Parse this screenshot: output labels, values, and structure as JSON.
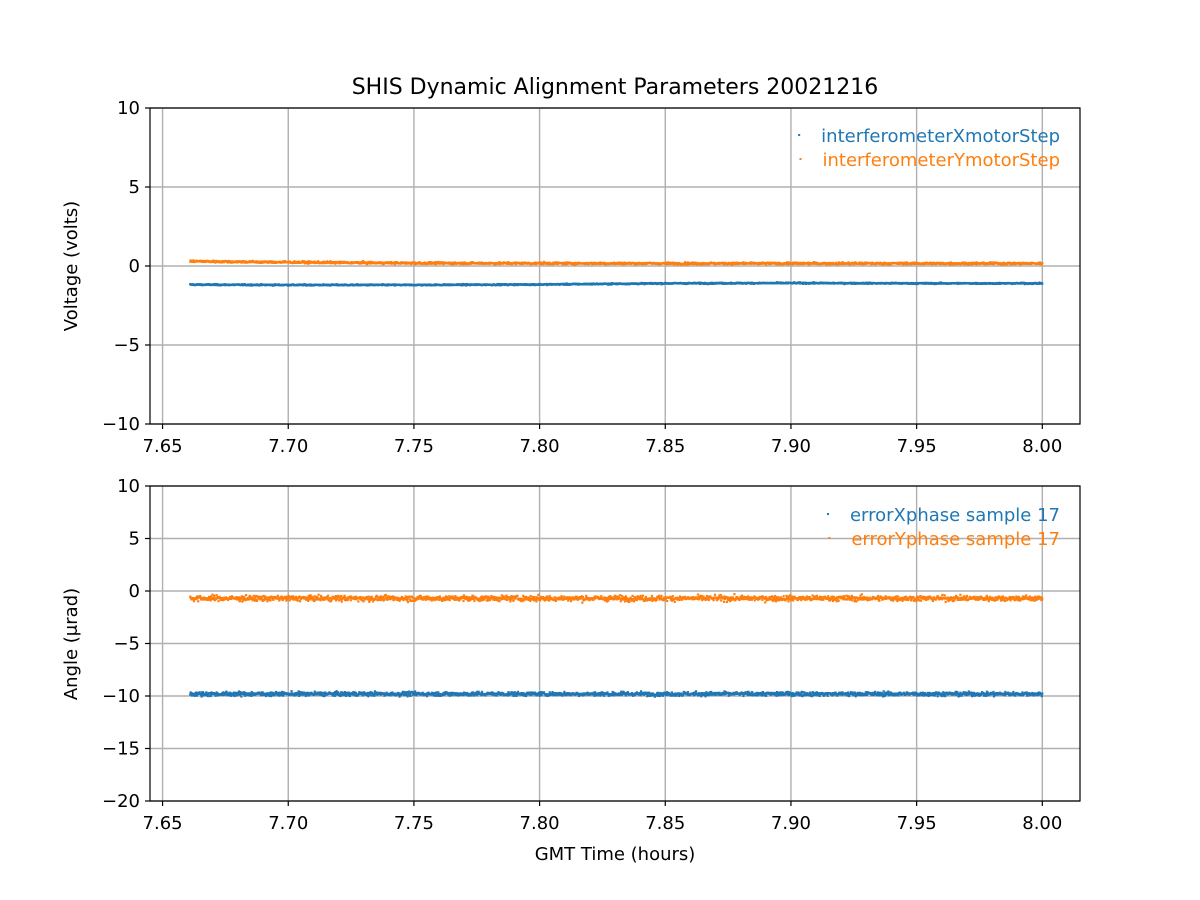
{
  "title": "SHIS Dynamic Alignment Parameters 20021216",
  "colors": {
    "blue": "#1f77b4",
    "orange": "#ff7f0e",
    "grid": "#b0b0b0"
  },
  "chart_data": [
    {
      "type": "scatter",
      "xlabel": "",
      "ylabel": "Voltage (volts)",
      "xlim": [
        7.645,
        8.015
      ],
      "ylim": [
        -10,
        10
      ],
      "xticks": [
        7.65,
        7.7,
        7.75,
        7.8,
        7.85,
        7.9,
        7.95,
        8.0
      ],
      "xtick_labels": [
        "7.65",
        "7.70",
        "7.75",
        "7.80",
        "7.85",
        "7.90",
        "7.95",
        "8.00"
      ],
      "yticks": [
        10,
        5,
        0,
        -5,
        -10
      ],
      "ytick_labels": [
        "10",
        "5",
        "0",
        "−5",
        "−10"
      ],
      "grid": true,
      "legend": "top-right",
      "series": [
        {
          "name": "interferometerXmotorStep",
          "color": "#1f77b4",
          "x": [
            7.661,
            7.7,
            7.75,
            7.8,
            7.85,
            7.9,
            7.95,
            8.0
          ],
          "y": [
            -1.18,
            -1.2,
            -1.2,
            -1.17,
            -1.1,
            -1.08,
            -1.1,
            -1.1
          ],
          "spread": 0.06
        },
        {
          "name": "interferometerYmotorStep",
          "color": "#ff7f0e",
          "x": [
            7.661,
            7.69,
            7.75,
            7.8,
            7.85,
            7.9,
            7.95,
            8.0
          ],
          "y": [
            0.3,
            0.25,
            0.18,
            0.17,
            0.16,
            0.16,
            0.16,
            0.16
          ],
          "spread": 0.1
        }
      ]
    },
    {
      "type": "scatter",
      "xlabel": "GMT Time (hours)",
      "ylabel": "Angle (μrad)",
      "xlim": [
        7.645,
        8.015
      ],
      "ylim": [
        -20,
        10
      ],
      "xticks": [
        7.65,
        7.7,
        7.75,
        7.8,
        7.85,
        7.9,
        7.95,
        8.0
      ],
      "xtick_labels": [
        "7.65",
        "7.70",
        "7.75",
        "7.80",
        "7.85",
        "7.90",
        "7.95",
        "8.00"
      ],
      "yticks": [
        10,
        5,
        0,
        -5,
        -10,
        -15,
        -20
      ],
      "ytick_labels": [
        "10",
        "5",
        "0",
        "−5",
        "−10",
        "−15",
        "−20"
      ],
      "grid": true,
      "legend": "top-right",
      "series": [
        {
          "name": "errorXphase sample 17",
          "color": "#1f77b4",
          "x": [
            7.661,
            7.7,
            7.75,
            7.8,
            7.85,
            7.9,
            7.95,
            8.0
          ],
          "y": [
            -9.8,
            -9.8,
            -9.8,
            -9.8,
            -9.8,
            -9.8,
            -9.8,
            -9.8
          ],
          "spread": 0.3
        },
        {
          "name": "errorYphase sample 17",
          "color": "#ff7f0e",
          "x": [
            7.661,
            7.7,
            7.75,
            7.8,
            7.85,
            7.9,
            7.95,
            8.0
          ],
          "y": [
            -0.7,
            -0.7,
            -0.7,
            -0.7,
            -0.7,
            -0.7,
            -0.7,
            -0.7
          ],
          "spread": 0.4
        }
      ]
    }
  ]
}
